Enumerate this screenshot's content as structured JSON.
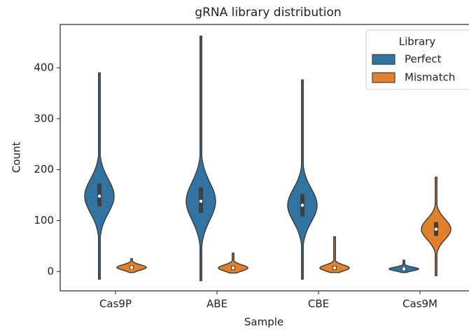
{
  "chart_data": {
    "type": "violin",
    "title": "gRNA library distribution",
    "x_label": "Sample",
    "y_label": "Count",
    "categories": [
      "Cas9P",
      "ABE",
      "CBE",
      "Cas9M"
    ],
    "legend_title": "Library",
    "legend_position": "upper right",
    "series": [
      {
        "name": "Perfect",
        "color": "#3274a1",
        "min": [
          -15,
          -18,
          -15,
          -2
        ],
        "q1": [
          128,
          115,
          108,
          2
        ],
        "median": [
          148,
          138,
          130,
          5
        ],
        "q3": [
          173,
          165,
          152,
          7
        ],
        "max": [
          390,
          462,
          376,
          22
        ]
      },
      {
        "name": "Mismatch",
        "color": "#e1812c",
        "min": [
          -2,
          -3,
          -2,
          -8
        ],
        "q1": [
          5,
          3,
          3,
          70
        ],
        "median": [
          8,
          7,
          7,
          83
        ],
        "q3": [
          12,
          11,
          11,
          97
        ],
        "max": [
          25,
          36,
          68,
          185
        ]
      }
    ],
    "ylim": [
      -38,
      485
    ],
    "yticks": [
      0,
      100,
      200,
      300,
      400
    ]
  }
}
